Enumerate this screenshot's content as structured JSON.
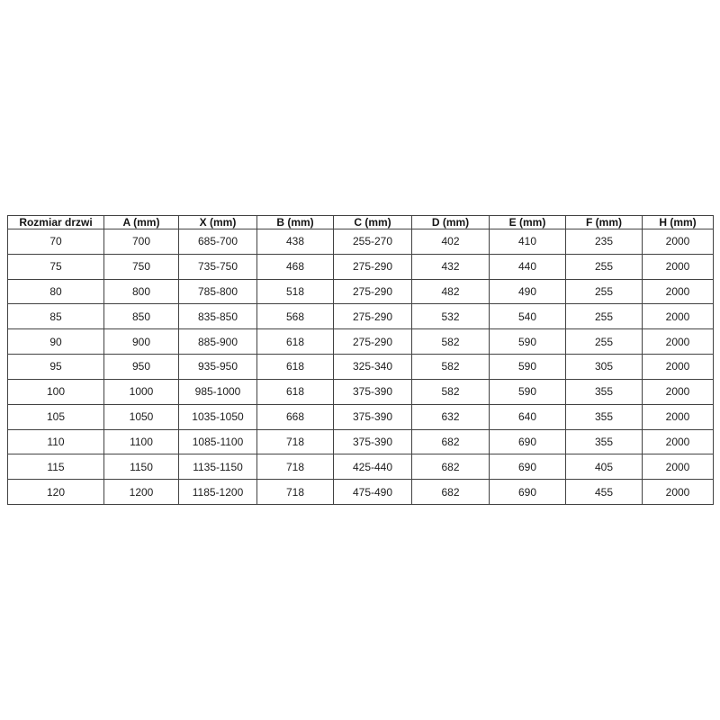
{
  "chart_data": {
    "type": "table",
    "columns": [
      "Rozmiar drzwi",
      "A (mm)",
      "X (mm)",
      "B (mm)",
      "C (mm)",
      "D (mm)",
      "E (mm)",
      "F (mm)",
      "H (mm)"
    ],
    "rows": [
      [
        "70",
        "700",
        "685-700",
        "438",
        "255-270",
        "402",
        "410",
        "235",
        "2000"
      ],
      [
        "75",
        "750",
        "735-750",
        "468",
        "275-290",
        "432",
        "440",
        "255",
        "2000"
      ],
      [
        "80",
        "800",
        "785-800",
        "518",
        "275-290",
        "482",
        "490",
        "255",
        "2000"
      ],
      [
        "85",
        "850",
        "835-850",
        "568",
        "275-290",
        "532",
        "540",
        "255",
        "2000"
      ],
      [
        "90",
        "900",
        "885-900",
        "618",
        "275-290",
        "582",
        "590",
        "255",
        "2000"
      ],
      [
        "95",
        "950",
        "935-950",
        "618",
        "325-340",
        "582",
        "590",
        "305",
        "2000"
      ],
      [
        "100",
        "1000",
        "985-1000",
        "618",
        "375-390",
        "582",
        "590",
        "355",
        "2000"
      ],
      [
        "105",
        "1050",
        "1035-1050",
        "668",
        "375-390",
        "632",
        "640",
        "355",
        "2000"
      ],
      [
        "110",
        "1100",
        "1085-1100",
        "718",
        "375-390",
        "682",
        "690",
        "355",
        "2000"
      ],
      [
        "115",
        "1150",
        "1135-1150",
        "718",
        "425-440",
        "682",
        "690",
        "405",
        "2000"
      ],
      [
        "120",
        "1200",
        "1185-1200",
        "718",
        "475-490",
        "682",
        "690",
        "455",
        "2000"
      ]
    ],
    "layout": {
      "grid": true,
      "header_bold": true,
      "background": "#ffffff",
      "border_color": "#424242",
      "text_color": "#1c1c1c"
    }
  }
}
